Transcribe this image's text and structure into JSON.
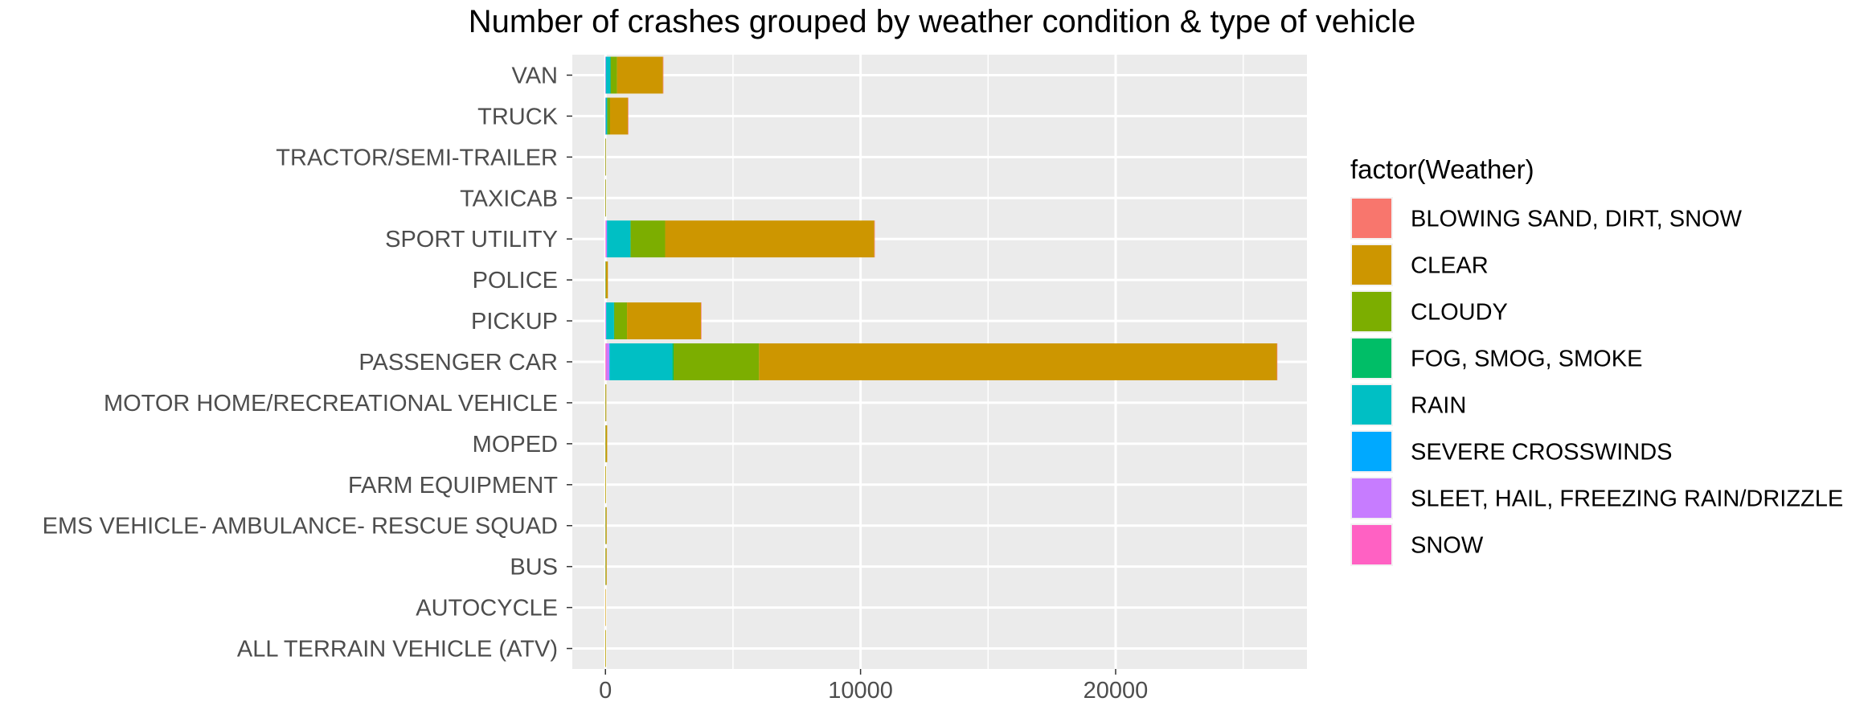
{
  "chart_data": {
    "type": "bar",
    "orientation": "horizontal",
    "stacked": true,
    "title": "Number of crashes grouped by weather condition & type of vehicle",
    "xlabel": "",
    "ylabel": "",
    "xlim": [
      -1300,
      27500
    ],
    "x_ticks": [
      0,
      10000,
      20000
    ],
    "x_tick_labels": [
      "0",
      "10000",
      "20000"
    ],
    "grid": true,
    "legend_title": "factor(Weather)",
    "legend_position": "right",
    "categories": [
      "VAN",
      "TRUCK",
      "TRACTOR/SEMI-TRAILER",
      "TAXICAB",
      "SPORT UTILITY",
      "POLICE",
      "PICKUP",
      "PASSENGER CAR",
      "MOTOR HOME/RECREATIONAL VEHICLE",
      "MOPED",
      "FARM EQUIPMENT",
      "EMS VEHICLE- AMBULANCE- RESCUE SQUAD",
      "BUS",
      "AUTOCYCLE",
      "ALL TERRAIN VEHICLE (ATV)"
    ],
    "series": [
      {
        "name": "BLOWING SAND, DIRT, SNOW",
        "color": "#F8766D",
        "values": [
          2,
          1,
          0,
          0,
          10,
          0,
          5,
          20,
          0,
          0,
          0,
          0,
          0,
          0,
          0
        ]
      },
      {
        "name": "CLEAR",
        "color": "#CD9600",
        "values": [
          1800,
          700,
          20,
          15,
          8200,
          80,
          2900,
          20300,
          30,
          60,
          10,
          40,
          40,
          5,
          10
        ]
      },
      {
        "name": "CLOUDY",
        "color": "#7CAE00",
        "values": [
          250,
          110,
          3,
          2,
          1350,
          10,
          500,
          3350,
          3,
          5,
          1,
          5,
          5,
          0,
          1
        ]
      },
      {
        "name": "FOG, SMOG, SMOKE",
        "color": "#00BE67",
        "values": [
          5,
          3,
          0,
          0,
          20,
          0,
          10,
          50,
          0,
          0,
          0,
          0,
          0,
          0,
          0
        ]
      },
      {
        "name": "RAIN",
        "color": "#00BFC4",
        "values": [
          180,
          60,
          2,
          2,
          900,
          5,
          300,
          2450,
          1,
          2,
          0,
          3,
          3,
          0,
          0
        ]
      },
      {
        "name": "SEVERE CROSSWINDS",
        "color": "#00A9FF",
        "values": [
          3,
          1,
          0,
          0,
          10,
          0,
          5,
          20,
          0,
          0,
          0,
          0,
          0,
          0,
          0
        ]
      },
      {
        "name": "SLEET, HAIL, FREEZING RAIN/DRIZZLE",
        "color": "#C77CFF",
        "values": [
          10,
          5,
          0,
          0,
          40,
          0,
          20,
          110,
          0,
          0,
          0,
          0,
          0,
          0,
          0
        ]
      },
      {
        "name": "SNOW",
        "color": "#FF61C3",
        "values": [
          5,
          2,
          0,
          0,
          20,
          0,
          10,
          40,
          0,
          0,
          0,
          0,
          0,
          0,
          0
        ]
      }
    ],
    "stack_order": [
      "SNOW",
      "SLEET, HAIL, FREEZING RAIN/DRIZZLE",
      "SEVERE CROSSWINDS",
      "RAIN",
      "FOG, SMOG, SMOKE",
      "CLOUDY",
      "CLEAR",
      "BLOWING SAND, DIRT, SNOW"
    ]
  },
  "colors": {
    "panel_background": "#EBEBEB",
    "grid_major": "#FFFFFF",
    "grid_minor": "#F5F5F5",
    "axis_text": "#4D4D4D",
    "tick": "#333333"
  }
}
